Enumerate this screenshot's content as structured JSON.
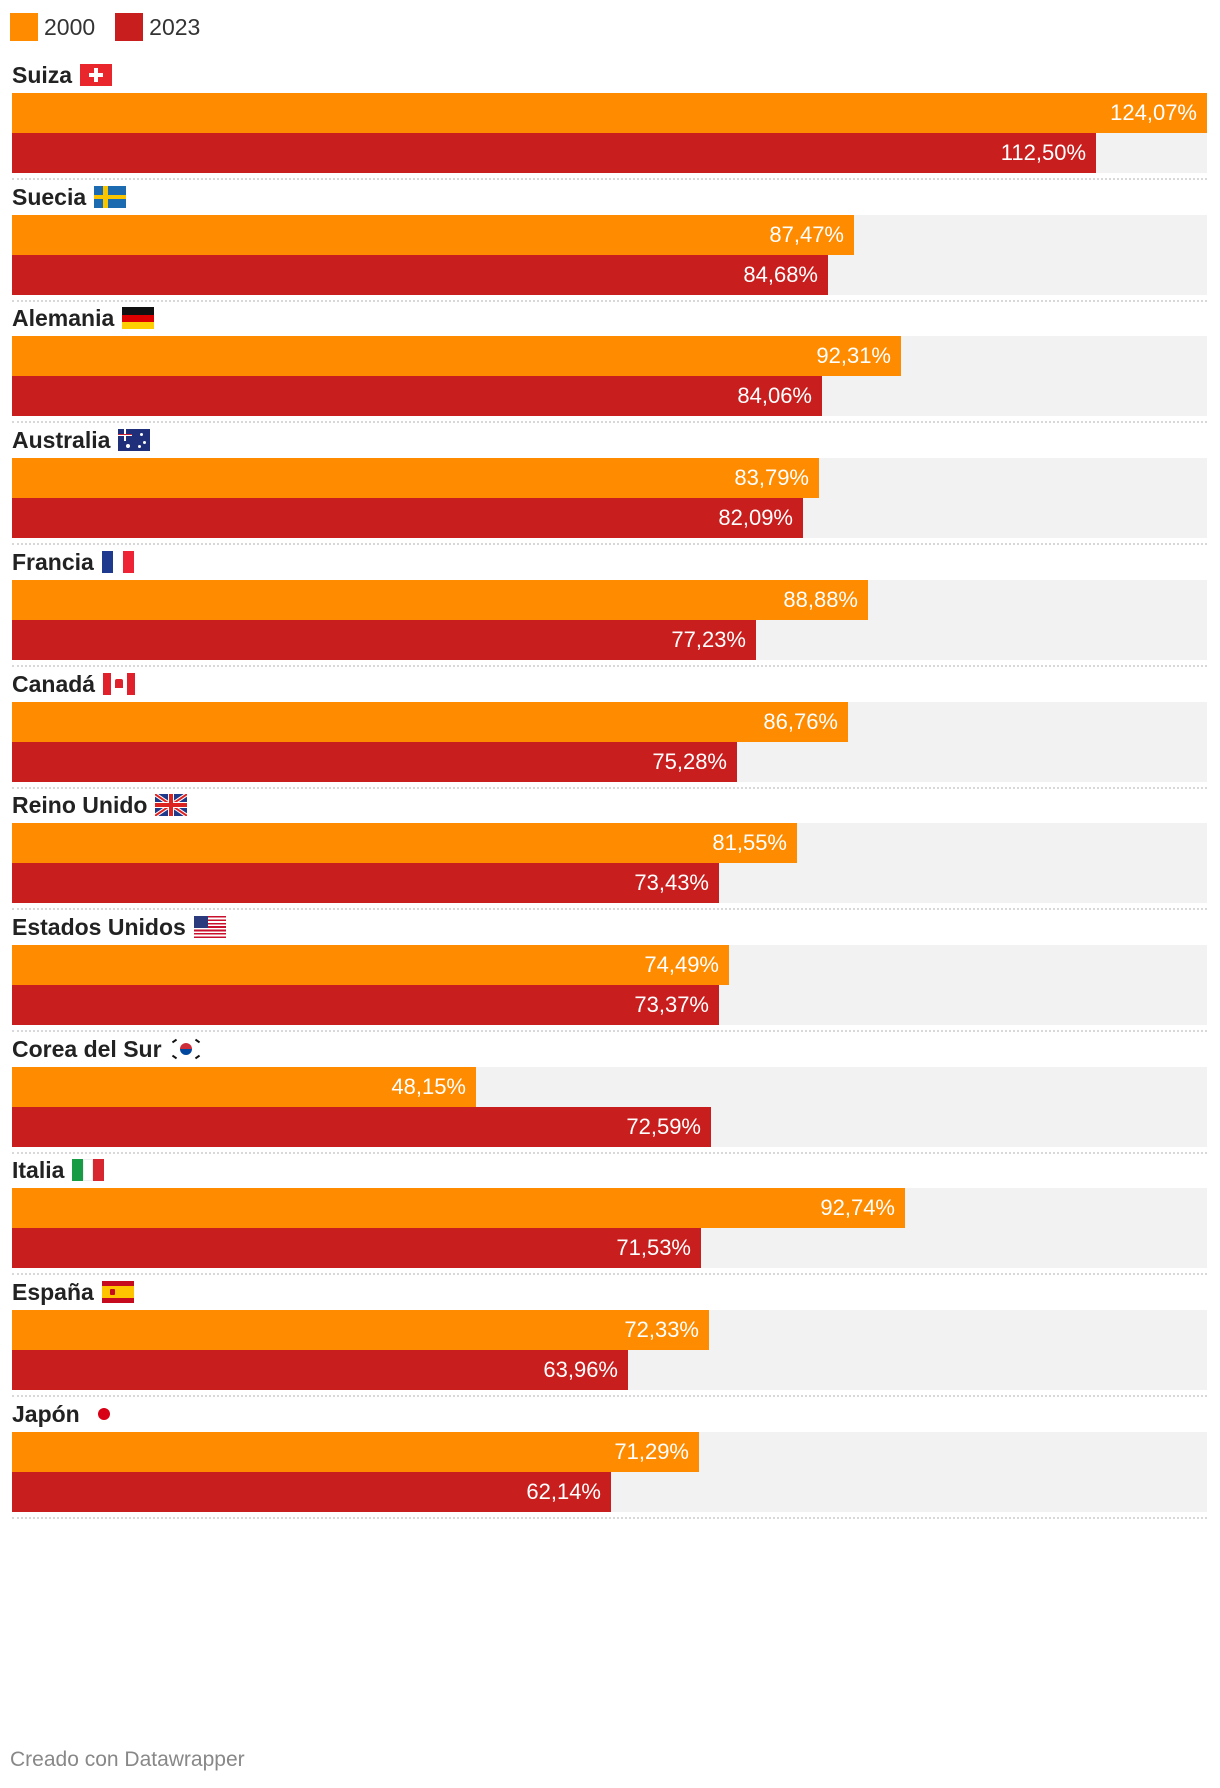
{
  "colors": {
    "y2000": "#ff8c00",
    "y2023": "#c81e1e",
    "track": "#f2f2f2"
  },
  "legend": [
    {
      "label": "2000",
      "color": "#ff8c00"
    },
    {
      "label": "2023",
      "color": "#c81e1e"
    }
  ],
  "footer": {
    "credit": "Creado con Datawrapper"
  },
  "chart_data": {
    "type": "bar",
    "orientation": "horizontal",
    "title": "",
    "xlabel": "",
    "ylabel": "",
    "xlim": [
      0,
      124.07
    ],
    "value_suffix": "%",
    "categories": [
      "Suiza",
      "Suecia",
      "Alemania",
      "Australia",
      "Francia",
      "Canadá",
      "Reino Unido",
      "Estados Unidos",
      "Corea del Sur",
      "Italia",
      "España",
      "Japón"
    ],
    "flags": [
      "switzerland-flag-icon",
      "sweden-flag-icon",
      "germany-flag-icon",
      "australia-flag-icon",
      "france-flag-icon",
      "canada-flag-icon",
      "uk-flag-icon",
      "usa-flag-icon",
      "south-korea-flag-icon",
      "italy-flag-icon",
      "spain-flag-icon",
      "japan-flag-icon"
    ],
    "series": [
      {
        "name": "2000",
        "values": [
          124.07,
          87.47,
          92.31,
          83.79,
          88.88,
          86.76,
          81.55,
          74.49,
          48.15,
          92.74,
          72.33,
          71.29
        ],
        "labels": [
          "124,07%",
          "87,47%",
          "92,31%",
          "83,79%",
          "88,88%",
          "86,76%",
          "81,55%",
          "74,49%",
          "48,15%",
          "92,74%",
          "72,33%",
          "71,29%"
        ]
      },
      {
        "name": "2023",
        "values": [
          112.5,
          84.68,
          84.06,
          82.09,
          77.23,
          75.28,
          73.43,
          73.37,
          72.59,
          71.53,
          63.96,
          62.14
        ],
        "labels": [
          "112,50%",
          "84,68%",
          "84,06%",
          "82,09%",
          "77,23%",
          "75,28%",
          "73,43%",
          "73,37%",
          "72,59%",
          "71,53%",
          "63,96%",
          "62,14%"
        ]
      }
    ]
  }
}
